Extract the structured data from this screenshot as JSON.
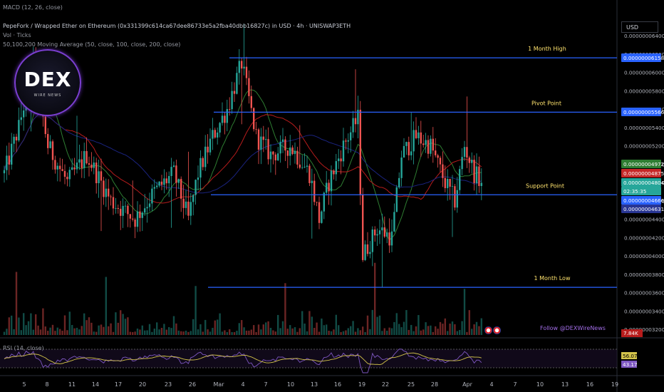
{
  "header": {
    "macd": "MACD (12, 26, close)",
    "title": "PepeFork / Wrapped Ether on Ethereum (0x331399c614ca67dee86733e5a2fba40dbb16827c) in USD · 4h · UNISWAP3ETH",
    "vol": "Vol · Ticks",
    "ma": "50,100,200 Moving Average (50, close, 100, close, 200, close)",
    "rsi": "RSI (14, close)"
  },
  "logo": {
    "big": "DEX",
    "small": "WIRE NEWS"
  },
  "currency": "USD",
  "follow": "Follow @DEXWireNews",
  "colors": {
    "up": "#26a69a",
    "down": "#ef5350",
    "level": "#2962ff",
    "ma50": "#2e7d32",
    "ma100": "#b71c1c",
    "ma200": "#1a237e",
    "rsi": "#7e57c2",
    "rsi_ma": "#d4c44b"
  },
  "chart_data": {
    "type": "candlestick",
    "price_axis": {
      "ticks": [
        "0.00000006400",
        "0.00000006200",
        "0.00000006000",
        "0.00000005800",
        "0.00000005600",
        "0.00000005400",
        "0.00000005200",
        "0.00000005000",
        "0.00000004800",
        "0.00000004600",
        "0.00000004400",
        "0.00000004200",
        "0.00000004000",
        "0.00000003800",
        "0.00000003600",
        "0.00000003400",
        "0.00000003200"
      ]
    },
    "x_axis": {
      "ticks": [
        "5",
        "8",
        "11",
        "14",
        "17",
        "20",
        "23",
        "26",
        "Mar",
        "4",
        "7",
        "10",
        "13",
        "16",
        "19",
        "22",
        "25",
        "28",
        "Apr",
        "4",
        "7",
        "10",
        "13",
        "16",
        "19"
      ]
    },
    "levels": [
      {
        "name": "1 Month High",
        "value": 6.158e-08
      },
      {
        "name": "Pivot Point",
        "value": 5.566e-08
      },
      {
        "name": "Support Point",
        "value": 4.666e-08
      },
      {
        "name": "1 Month Low",
        "value": 3.657e-08
      }
    ],
    "price_labels": [
      {
        "text": "0.00000006158",
        "kind": "level"
      },
      {
        "text": "0.00000005566",
        "kind": "level"
      },
      {
        "text": "0.00000004972",
        "kind": "ma50"
      },
      {
        "text": "0.00000004875",
        "kind": "ma100"
      },
      {
        "text": "0.00000004804",
        "kind": "last"
      },
      {
        "text": "02:35:35",
        "kind": "last_time"
      },
      {
        "text": "0.00000004666",
        "kind": "level"
      },
      {
        "text": "0.00000004631",
        "kind": "ma200"
      }
    ],
    "volume_label": "7.84K",
    "rsi": {
      "value": "56.07",
      "ma": "43.17"
    }
  }
}
